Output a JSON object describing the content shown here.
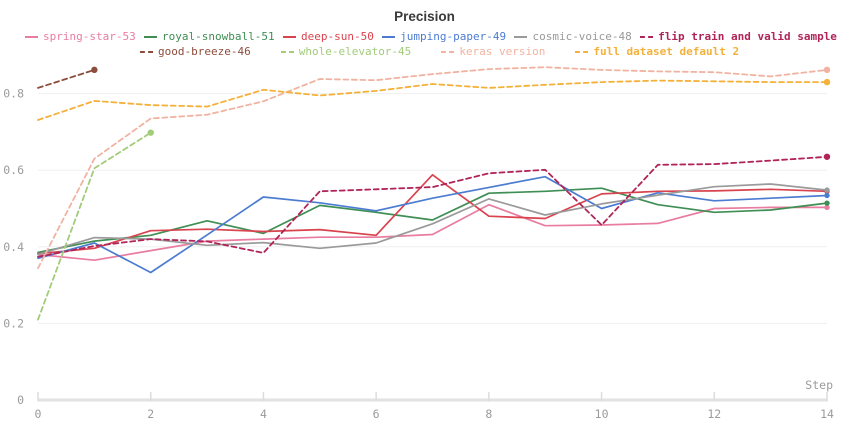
{
  "title": "Precision",
  "axes": {
    "x_label": "Step",
    "x_ticks": [
      0,
      2,
      4,
      6,
      8,
      10,
      12,
      14
    ],
    "y_ticks": [
      0,
      0.2,
      0.4,
      0.6,
      0.8
    ],
    "x_range": [
      0,
      14
    ],
    "y_range": [
      0,
      1.0
    ],
    "tick_color": "#9b9b9b",
    "grid_color": "#efefef",
    "axis_color": "#e2e2e2"
  },
  "legend": {
    "rows": [
      [
        {
          "label": "spring-star-53",
          "color": "#e87da0",
          "dashed": false,
          "bold": false
        },
        {
          "label": "royal-snowball-51",
          "color": "#3f8e54",
          "dashed": false,
          "bold": false
        },
        {
          "label": "deep-sun-50",
          "color": "#d8434e",
          "dashed": false,
          "bold": false
        },
        {
          "label": "jumping-paper-49",
          "color": "#4c7cd0",
          "dashed": false,
          "bold": false
        },
        {
          "label": "cosmic-voice-48",
          "color": "#9a9a9a",
          "dashed": false,
          "bold": false
        },
        {
          "label": "flip train and valid sample",
          "color": "#b02458",
          "dashed": true,
          "bold": true
        }
      ],
      [
        {
          "label": "good-breeze-46",
          "color": "#8d4c3c",
          "dashed": true,
          "bold": false
        },
        {
          "label": "whole-elevator-45",
          "color": "#a2cc7a",
          "dashed": true,
          "bold": false
        },
        {
          "label": "keras version",
          "color": "#f1b3a1",
          "dashed": true,
          "bold": false
        },
        {
          "label": "full dataset default 2",
          "color": "#f4b13a",
          "dashed": true,
          "bold": true
        }
      ]
    ]
  },
  "chart_data": {
    "type": "line",
    "title": "Precision",
    "xlabel": "Step",
    "ylabel": "",
    "xlim": [
      0,
      14
    ],
    "ylim": [
      0,
      1.0
    ],
    "grid": "horizontal-only",
    "legend_position": "top",
    "x": [
      0,
      1,
      2,
      3,
      4,
      5,
      6,
      7,
      8,
      9,
      10,
      11,
      12,
      13,
      14
    ],
    "series": [
      {
        "name": "spring-star-53",
        "color": "#e87da0",
        "dashed": false,
        "end_dot": true,
        "values": [
          0.38,
          0.365,
          0.39,
          0.415,
          0.42,
          0.425,
          0.425,
          0.432,
          0.51,
          0.455,
          0.457,
          0.461,
          0.5,
          0.503,
          0.503
        ]
      },
      {
        "name": "royal-snowball-51",
        "color": "#3f8e54",
        "dashed": false,
        "end_dot": true,
        "values": [
          0.385,
          0.415,
          0.43,
          0.468,
          0.435,
          0.508,
          0.49,
          0.47,
          0.54,
          0.545,
          0.553,
          0.51,
          0.49,
          0.496,
          0.514
        ]
      },
      {
        "name": "deep-sun-50",
        "color": "#d8434e",
        "dashed": false,
        "end_dot": true,
        "values": [
          0.382,
          0.396,
          0.442,
          0.446,
          0.44,
          0.445,
          0.43,
          0.588,
          0.48,
          0.474,
          0.538,
          0.545,
          0.546,
          0.55,
          0.545
        ]
      },
      {
        "name": "jumping-paper-49",
        "color": "#4c7cd0",
        "dashed": false,
        "end_dot": true,
        "values": [
          0.37,
          0.41,
          0.333,
          0.431,
          0.53,
          0.515,
          0.494,
          0.527,
          0.555,
          0.583,
          0.5,
          0.541,
          0.52,
          0.527,
          0.534
        ]
      },
      {
        "name": "cosmic-voice-48",
        "color": "#9a9a9a",
        "dashed": false,
        "end_dot": true,
        "values": [
          0.38,
          0.424,
          0.42,
          0.404,
          0.411,
          0.396,
          0.41,
          0.46,
          0.525,
          0.483,
          0.512,
          0.535,
          0.557,
          0.564,
          0.548
        ]
      },
      {
        "name": "flip train and valid sample",
        "color": "#b02458",
        "dashed": true,
        "end_dot": true,
        "values": [
          0.374,
          0.402,
          0.42,
          0.414,
          0.384,
          0.545,
          0.55,
          0.556,
          0.592,
          0.601,
          0.457,
          0.614,
          0.616,
          0.625,
          0.635
        ]
      },
      {
        "name": "good-breeze-46",
        "color": "#8d4c3c",
        "dashed": true,
        "end_dot": true,
        "values": [
          0.815,
          0.862
        ]
      },
      {
        "name": "whole-elevator-45",
        "color": "#a2cc7a",
        "dashed": true,
        "end_dot": true,
        "values": [
          0.21,
          0.605,
          0.698
        ]
      },
      {
        "name": "keras version",
        "color": "#f1b3a1",
        "dashed": true,
        "end_dot": true,
        "values": [
          0.344,
          0.63,
          0.735,
          0.745,
          0.78,
          0.838,
          0.835,
          0.851,
          0.864,
          0.869,
          0.862,
          0.858,
          0.856,
          0.845,
          0.862
        ]
      },
      {
        "name": "full dataset default 2",
        "color": "#f4b13a",
        "dashed": true,
        "end_dot": true,
        "values": [
          0.731,
          0.781,
          0.77,
          0.766,
          0.81,
          0.795,
          0.807,
          0.825,
          0.815,
          0.823,
          0.83,
          0.834,
          0.832,
          0.83,
          0.83
        ]
      }
    ]
  }
}
